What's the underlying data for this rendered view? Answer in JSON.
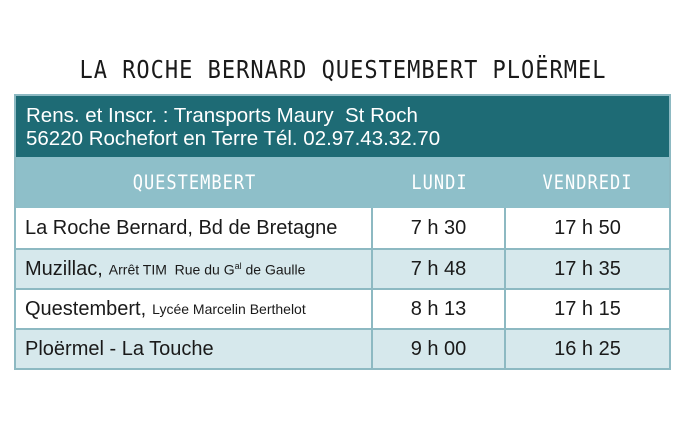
{
  "title": "LA ROCHE BERNARD QUESTEMBERT PLOËRMEL",
  "info": {
    "line1": "Rens. et Inscr. : Transports Maury  St Roch",
    "line2": "56220 Rochefort en Terre Tél. 02.97.43.32.70"
  },
  "header": {
    "col1": "QUESTEMBERT",
    "col2": "LUNDI",
    "col3": "VENDREDI"
  },
  "rows": [
    {
      "place": "La Roche Bernard, Bd de Bretagne",
      "detail": "",
      "monday": "7 h 30",
      "friday": "17 h 50"
    },
    {
      "place": "Muzillac,",
      "detail_pre": "Arrêt TIM  Rue du G",
      "detail_sup": "al",
      "detail_post": " de Gaulle",
      "monday": "7 h 48",
      "friday": "17 h 35"
    },
    {
      "place": "Questembert,",
      "detail": "Lycée Marcelin Berthelot",
      "monday": "8 h 13",
      "friday": "17 h 15"
    },
    {
      "place": "Ploërmel - La Touche",
      "detail": "",
      "monday": "9 h 00",
      "friday": "16 h 25"
    }
  ],
  "colors": {
    "dark_teal": "#1e6b75",
    "light_teal": "#8ebfc9",
    "alt_row": "#d6e8ec"
  }
}
